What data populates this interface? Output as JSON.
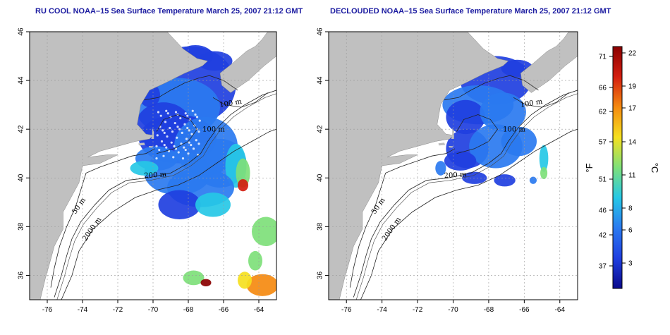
{
  "maps": [
    {
      "title": "RU COOL NOAA–15 Sea Surface Temperature March 25, 2007 21:12 GMT",
      "type": "raw"
    },
    {
      "title": "DECLOUDED NOAA–15 Sea Surface Temperature March 25, 2007 21:12 GMT",
      "type": "declouded"
    }
  ],
  "axes": {
    "x_ticks": [
      "-76",
      "-74",
      "-72",
      "-70",
      "-68",
      "-66",
      "-64"
    ],
    "x_values": [
      -76,
      -74,
      -72,
      -70,
      -68,
      -66,
      -64
    ],
    "y_ticks": [
      "36",
      "38",
      "40",
      "42",
      "44",
      "46"
    ],
    "y_values": [
      36,
      38,
      40,
      42,
      44,
      46
    ],
    "lon_range": [
      -77,
      -63
    ],
    "lat_range": [
      35,
      46
    ]
  },
  "contour_labels": [
    "200 m",
    "100 m",
    "2000 m",
    "50 m"
  ],
  "colorbar": {
    "f_label": "°F",
    "c_label": "°C",
    "fahrenheit_ticks": [
      "71",
      "66",
      "62",
      "57",
      "51",
      "46",
      "42",
      "37"
    ],
    "celsius_ticks": [
      "22",
      "19",
      "17",
      "14",
      "11",
      "8",
      "6",
      "3"
    ],
    "colors": [
      "#0a0a8c",
      "#1f3fe0",
      "#2a7af0",
      "#26c8e6",
      "#7ee07a",
      "#f5e020",
      "#f58a10",
      "#d41e10",
      "#8a0000"
    ]
  },
  "colors": {
    "land": "#c0c0c0",
    "ocean": "#ffffff",
    "title": "#1a1aa0"
  }
}
